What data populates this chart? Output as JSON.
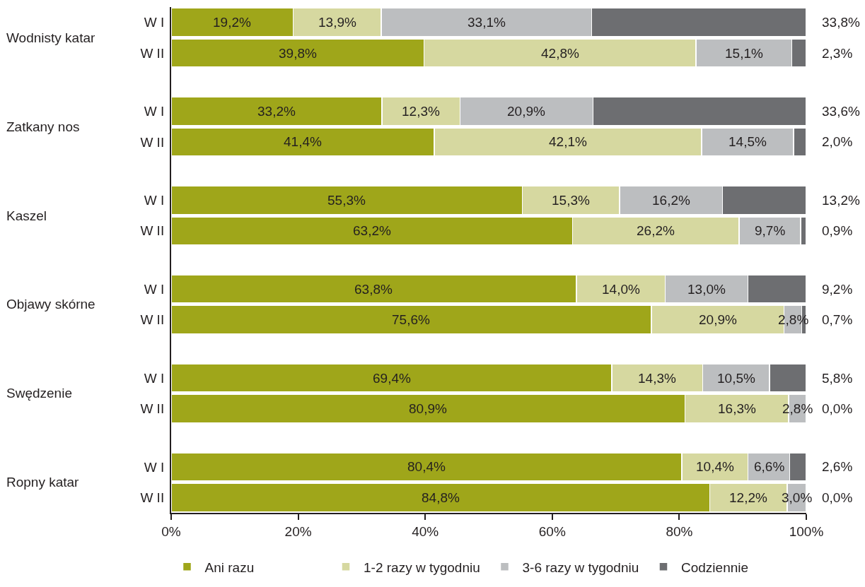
{
  "chart_data": {
    "type": "bar",
    "orientation": "horizontal",
    "stacked": true,
    "categories": [
      "W I",
      "W II",
      "W I",
      "W II",
      "W I",
      "W II",
      "W I",
      "W II",
      "W I",
      "W II",
      "W I",
      "W II"
    ],
    "annotations": [
      "Wodnisty katar",
      "Zatkany nos",
      "Kaszel",
      "Objawy skórne",
      "Swędzenie",
      "Ropny katar"
    ],
    "series": [
      {
        "name": "Ani razu",
        "color": "#9fa61a",
        "values": [
          19.2,
          39.8,
          33.2,
          41.4,
          55.3,
          63.2,
          63.8,
          75.6,
          69.4,
          80.9,
          80.4,
          84.8
        ],
        "value_labels": [
          "19,2%",
          "39,8%",
          "33,2%",
          "41,4%",
          "55,3%",
          "63,2%",
          "63,8%",
          "75,6%",
          "69,4%",
          "80,9%",
          "80,4%",
          "84,8%"
        ]
      },
      {
        "name": "1-2 razy w tygodniu",
        "color": "#d6d8a0",
        "values": [
          13.9,
          42.8,
          12.3,
          42.1,
          15.3,
          26.2,
          14.0,
          20.9,
          14.3,
          16.3,
          10.4,
          12.2
        ],
        "value_labels": [
          "13,9%",
          "42,8%",
          "12,3%",
          "42,1%",
          "15,3%",
          "26,2%",
          "14,0%",
          "20,9%",
          "14,3%",
          "16,3%",
          "10,4%",
          "12,2%"
        ]
      },
      {
        "name": "3-6 razy w tygodniu",
        "color": "#bcbec0",
        "values": [
          33.1,
          15.1,
          20.9,
          14.5,
          16.2,
          9.7,
          13.0,
          2.8,
          10.5,
          2.8,
          6.6,
          3.0
        ],
        "value_labels": [
          "33,1%",
          "15,1%",
          "20,9%",
          "14,5%",
          "16,2%",
          "9,7%",
          "13,0%",
          "2,8%",
          "10,5%",
          "2,8%",
          "6,6%",
          "3,0%"
        ]
      },
      {
        "name": "Codziennie",
        "color": "#6d6e71",
        "values": [
          33.8,
          2.3,
          33.6,
          2.0,
          13.2,
          0.9,
          9.2,
          0.7,
          5.8,
          0.0,
          2.6,
          0.0
        ],
        "value_labels": [
          "33,8%",
          "2,3%",
          "33,6%",
          "2,0%",
          "13,2%",
          "0,9%",
          "9,2%",
          "0,7%",
          "5,8%",
          "0,0%",
          "2,6%",
          "0,0%"
        ]
      }
    ],
    "xlim": [
      0,
      100
    ],
    "xticks": [
      {
        "value": 0,
        "label": "0%"
      },
      {
        "value": 20,
        "label": "20%"
      },
      {
        "value": 40,
        "label": "40%"
      },
      {
        "value": 60,
        "label": "60%"
      },
      {
        "value": 80,
        "label": "80%"
      },
      {
        "value": 100,
        "label": "100%"
      }
    ],
    "grid": false,
    "legend": "bottom"
  }
}
